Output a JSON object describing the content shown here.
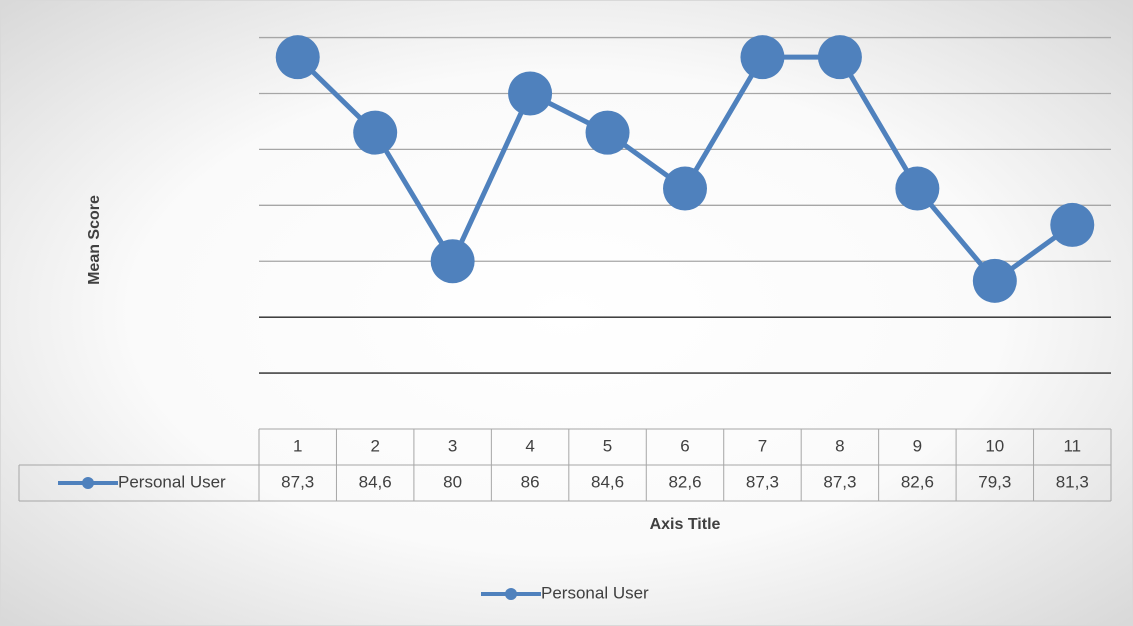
{
  "chart_data": {
    "type": "line",
    "y_axis_label": "Mean Score",
    "x_axis_label": "Axis Title",
    "categories": [
      "1",
      "2",
      "3",
      "4",
      "5",
      "6",
      "7",
      "8",
      "9",
      "10",
      "11"
    ],
    "series": [
      {
        "name": "Personal User",
        "color": "#4f81bd",
        "values": [
          87.3,
          84.6,
          80,
          86,
          84.6,
          82.6,
          87.3,
          87.3,
          82.6,
          79.3,
          81.3
        ],
        "value_labels": [
          "87,3",
          "84,6",
          "80",
          "86",
          "84,6",
          "82,6",
          "87,3",
          "87,3",
          "82,6",
          "79,3",
          "81,3"
        ]
      }
    ],
    "ylim": [
      74,
      88.7
    ],
    "yticks": [
      76,
      78,
      80,
      82,
      84,
      86,
      88
    ],
    "grid": true,
    "legend": "bottom"
  }
}
